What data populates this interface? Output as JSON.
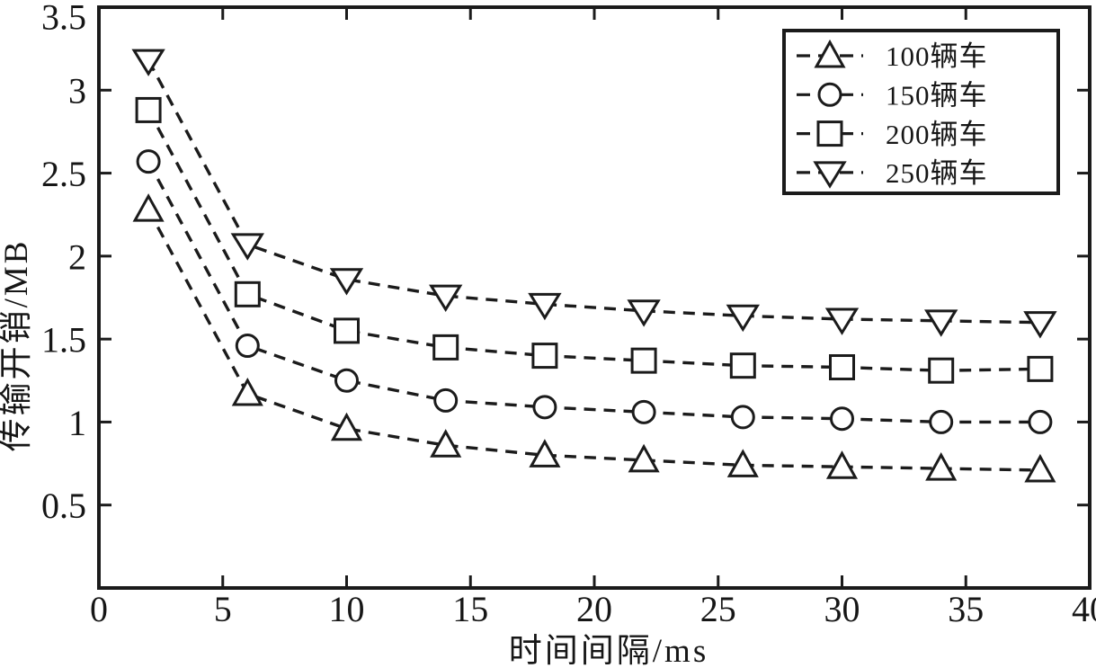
{
  "figure": {
    "ink_color": "#1b1b1b",
    "background": "#ffffff"
  },
  "chart_data": {
    "type": "line",
    "title": "",
    "xlabel": "时间间隔/ms",
    "ylabel": "传输开销/MB",
    "xlim": [
      0,
      40
    ],
    "ylim": [
      0,
      3.5
    ],
    "grid": false,
    "line_style": "dashed",
    "marker_fill": "open",
    "legend_position": "top-right",
    "xticks": {
      "values": [
        0,
        5,
        10,
        15,
        20,
        25,
        30,
        35,
        40
      ],
      "labels": [
        "0",
        "5",
        "10",
        "15",
        "20",
        "25",
        "30",
        "35",
        "40"
      ]
    },
    "yticks": {
      "values": [
        0.5,
        1,
        1.5,
        2,
        2.5,
        3,
        3.5
      ],
      "labels": [
        "0.5",
        "1",
        "1.5",
        "2",
        "2.5",
        "3",
        "3.5"
      ]
    },
    "x": [
      2,
      6,
      10,
      14,
      18,
      22,
      26,
      30,
      34,
      38
    ],
    "series": [
      {
        "name": "100辆车",
        "marker": "triangle-up",
        "values": [
          2.28,
          1.17,
          0.96,
          0.86,
          0.8,
          0.77,
          0.74,
          0.73,
          0.72,
          0.71
        ]
      },
      {
        "name": "150辆车",
        "marker": "circle",
        "values": [
          2.57,
          1.46,
          1.25,
          1.13,
          1.09,
          1.06,
          1.03,
          1.02,
          1.0,
          1.0
        ]
      },
      {
        "name": "200辆车",
        "marker": "square",
        "values": [
          2.88,
          1.77,
          1.55,
          1.45,
          1.4,
          1.37,
          1.34,
          1.33,
          1.31,
          1.32
        ]
      },
      {
        "name": "250辆车",
        "marker": "triangle-down",
        "values": [
          3.18,
          2.07,
          1.86,
          1.76,
          1.71,
          1.67,
          1.64,
          1.62,
          1.61,
          1.6
        ]
      }
    ]
  }
}
